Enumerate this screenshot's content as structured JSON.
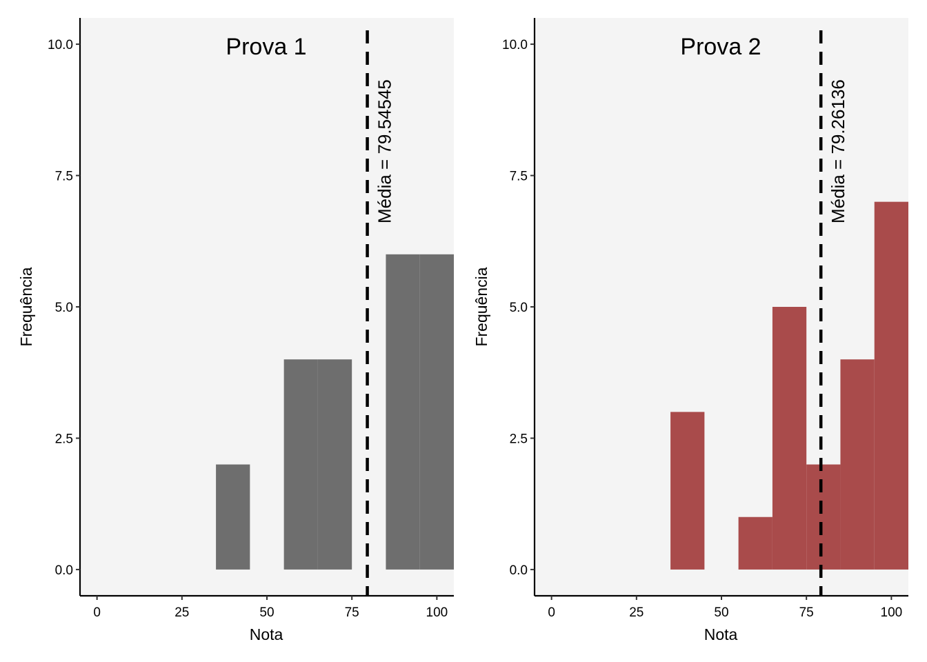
{
  "chart_data": [
    {
      "type": "bar",
      "title": "Prova 1",
      "xlabel": "Nota",
      "ylabel": "Frequência",
      "bin_width": 10,
      "bins": [
        {
          "x": 40,
          "count": 2
        },
        {
          "x": 60,
          "count": 4
        },
        {
          "x": 70,
          "count": 4
        },
        {
          "x": 90,
          "count": 6
        },
        {
          "x": 100,
          "count": 6
        }
      ],
      "xlim": [
        -5,
        105
      ],
      "ylim": [
        -0.5,
        10.5
      ],
      "x_ticks": [
        "0",
        "25",
        "50",
        "75",
        "100"
      ],
      "y_ticks": [
        "0.0",
        "2.5",
        "5.0",
        "7.5",
        "10.0"
      ],
      "mean": 79.54545,
      "mean_label": "Média = 79.54545",
      "fill_color": "#6e6e6e",
      "panel_background": "#f4f4f4",
      "grid": false,
      "legend": "none"
    },
    {
      "type": "bar",
      "title": "Prova 2",
      "xlabel": "Nota",
      "ylabel": "Frequência",
      "bin_width": 10,
      "bins": [
        {
          "x": 40,
          "count": 3
        },
        {
          "x": 60,
          "count": 1
        },
        {
          "x": 70,
          "count": 5
        },
        {
          "x": 80,
          "count": 2
        },
        {
          "x": 90,
          "count": 4
        },
        {
          "x": 100,
          "count": 7
        }
      ],
      "xlim": [
        -5,
        105
      ],
      "ylim": [
        -0.5,
        10.5
      ],
      "x_ticks": [
        "0",
        "25",
        "50",
        "75",
        "100"
      ],
      "y_ticks": [
        "0.0",
        "2.5",
        "5.0",
        "7.5",
        "10.0"
      ],
      "mean": 79.26136,
      "mean_label": "Média = 79.26136",
      "fill_color": "#a94b4b",
      "panel_background": "#f4f4f4",
      "grid": false,
      "legend": "none"
    }
  ]
}
